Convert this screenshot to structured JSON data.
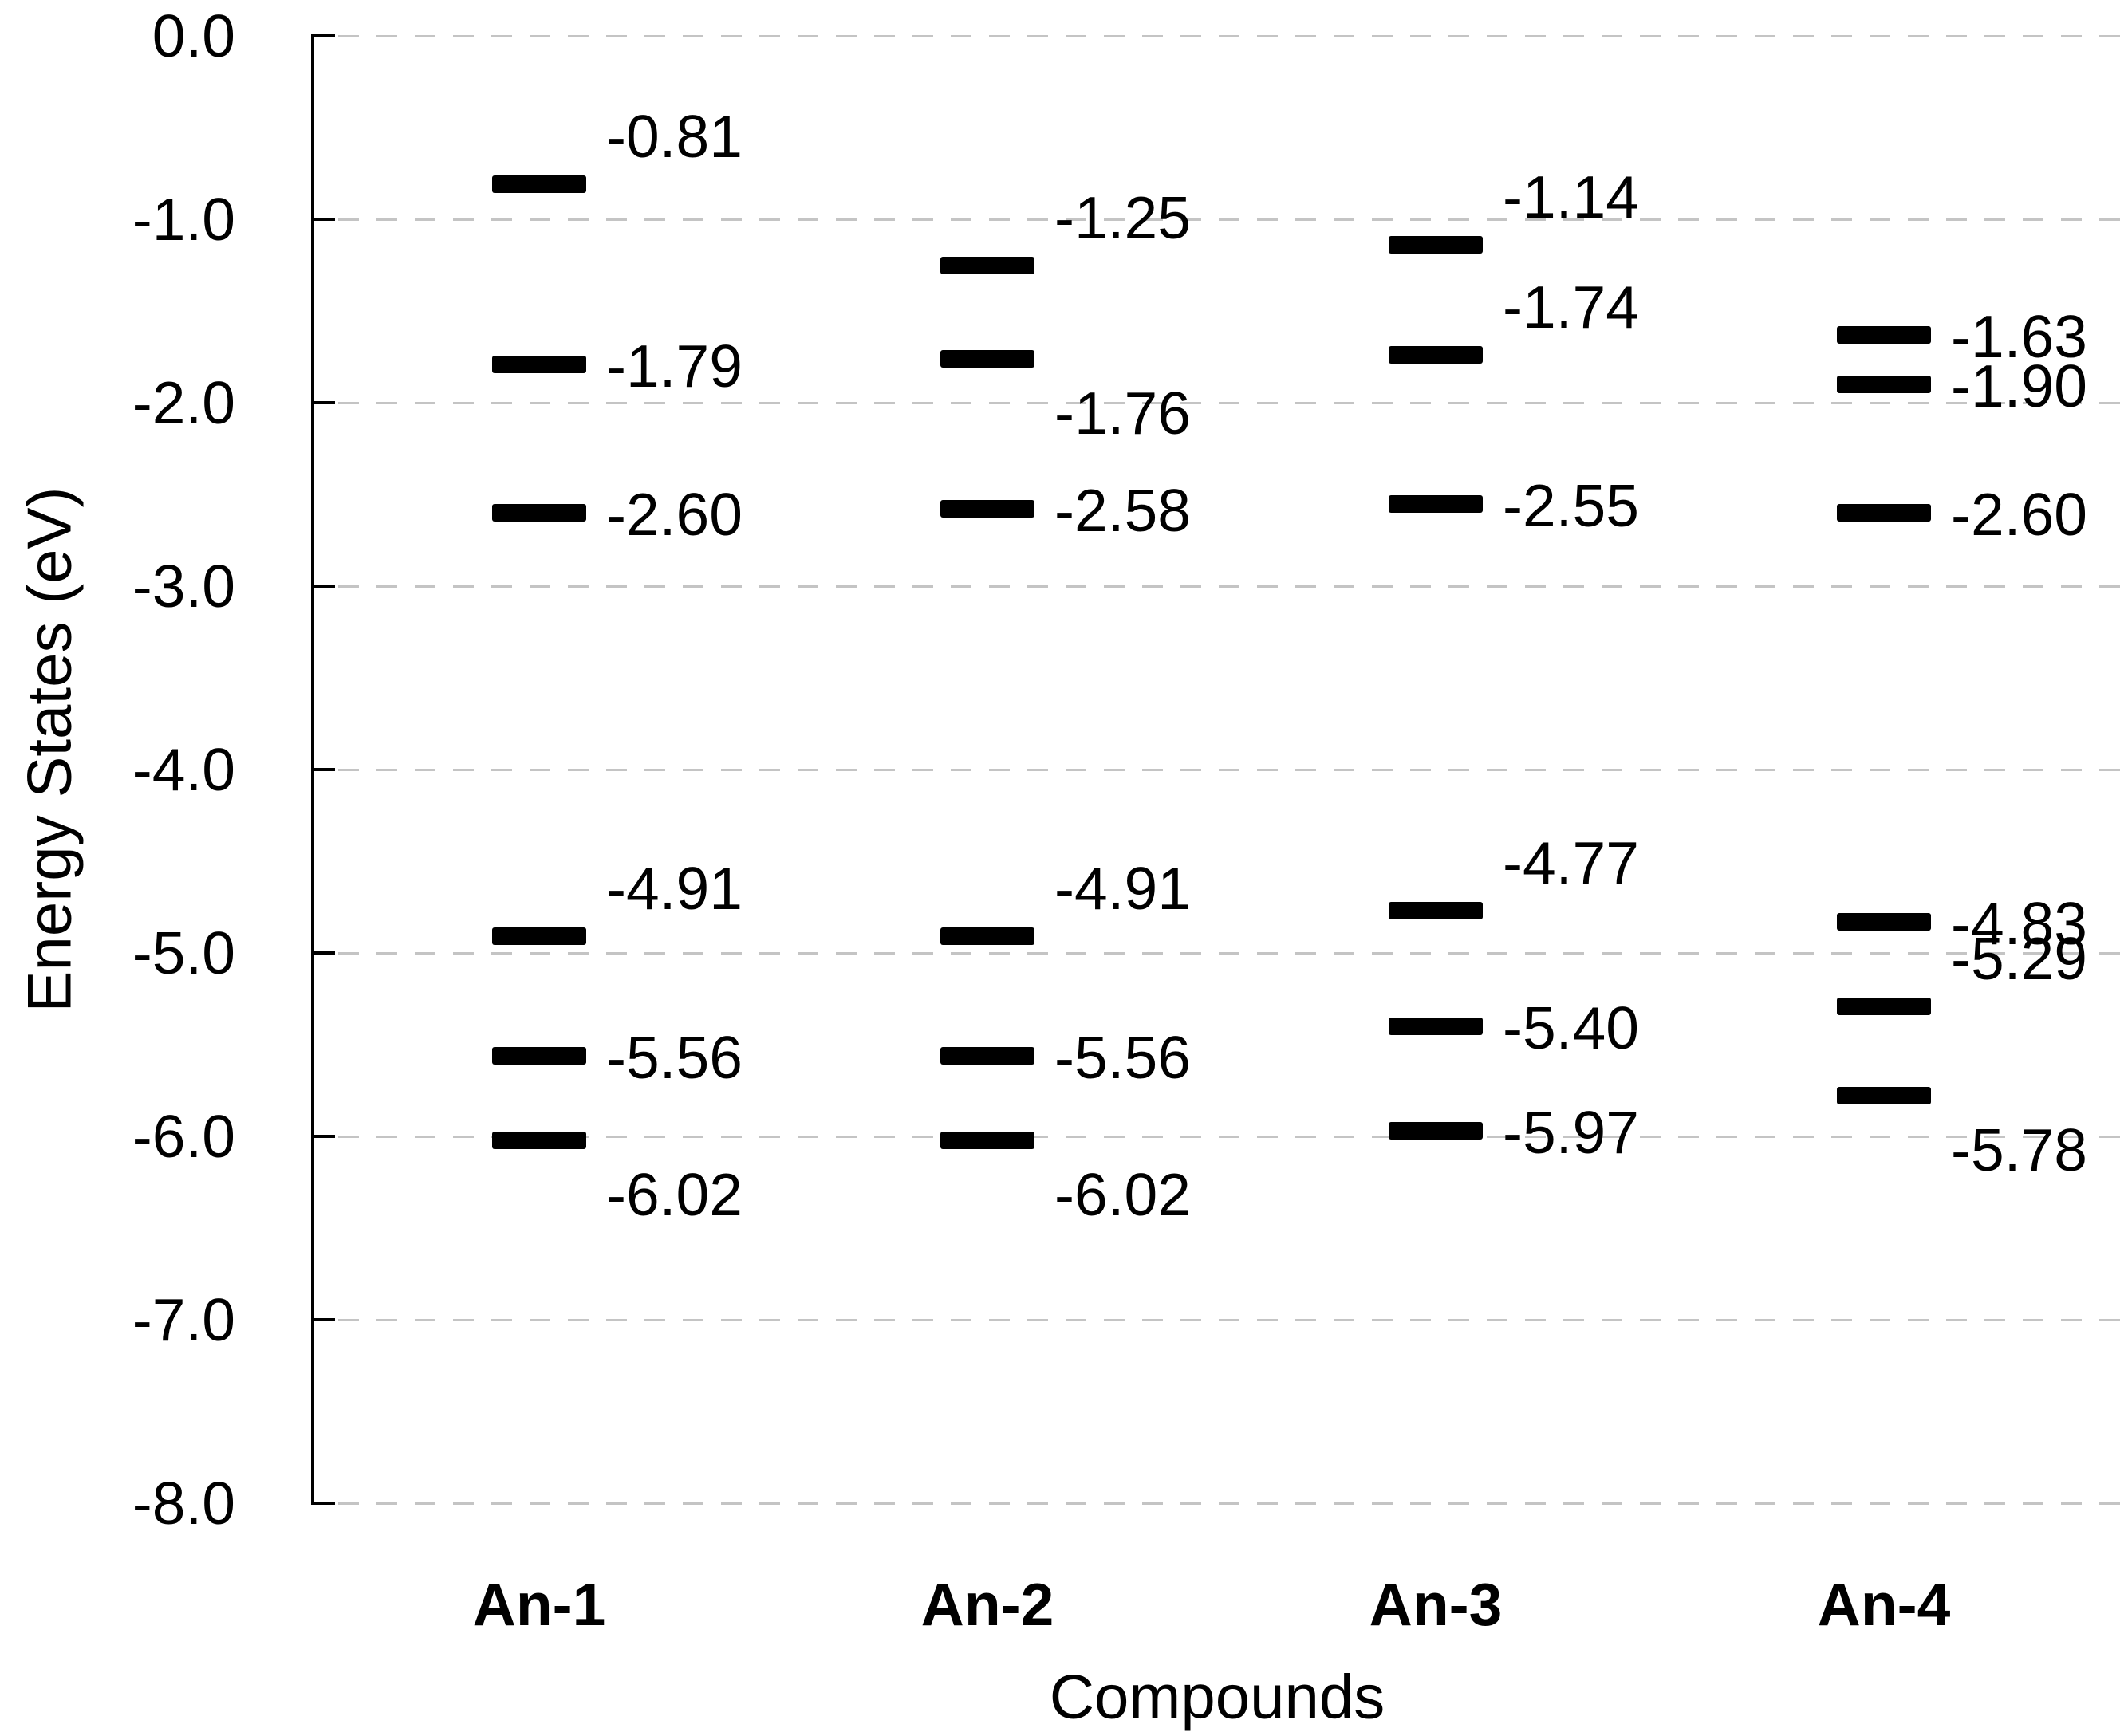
{
  "chart_data": {
    "type": "scatter",
    "subtype": "energy-level-diagram",
    "marker": "horizontal-level-bar",
    "title": "",
    "xlabel": "Compounds",
    "ylabel": "Energy States (eV)",
    "ylim": [
      -8.0,
      0.0
    ],
    "ytick_step": 1.0,
    "ytick_labels": [
      "0.0",
      "-1.0",
      "-2.0",
      "-3.0",
      "-4.0",
      "-5.0",
      "-6.0",
      "-7.0",
      "-8.0"
    ],
    "grid": "dashed-horizontal",
    "legend_position": "none",
    "categories": [
      "An-1",
      "An-2",
      "An-3",
      "An-4"
    ],
    "series": [
      {
        "name": "An-1",
        "levels": [
          {
            "value": -0.81,
            "label": "-0.81",
            "label_pos": "above"
          },
          {
            "value": -1.79,
            "label": "-1.79",
            "label_pos": "mid"
          },
          {
            "value": -2.6,
            "label": "-2.60",
            "label_pos": "mid"
          },
          {
            "value": -4.91,
            "label": "-4.91",
            "label_pos": "above"
          },
          {
            "value": -5.56,
            "label": "-5.56",
            "label_pos": "mid"
          },
          {
            "value": -6.02,
            "label": "-6.02",
            "label_pos": "below"
          }
        ]
      },
      {
        "name": "An-2",
        "levels": [
          {
            "value": -1.25,
            "label": "-1.25",
            "label_pos": "above"
          },
          {
            "value": -1.76,
            "label": "-1.76",
            "label_pos": "below"
          },
          {
            "value": -2.58,
            "label": "-2.58",
            "label_pos": "mid"
          },
          {
            "value": -4.91,
            "label": "-4.91",
            "label_pos": "above"
          },
          {
            "value": -5.56,
            "label": "-5.56",
            "label_pos": "mid"
          },
          {
            "value": -6.02,
            "label": "-6.02",
            "label_pos": "below"
          }
        ]
      },
      {
        "name": "An-3",
        "levels": [
          {
            "value": -1.14,
            "label": "-1.14",
            "label_pos": "above"
          },
          {
            "value": -1.74,
            "label": "-1.74",
            "label_pos": "above"
          },
          {
            "value": -2.55,
            "label": "-2.55",
            "label_pos": "mid"
          },
          {
            "value": -4.77,
            "label": "-4.77",
            "label_pos": "above"
          },
          {
            "value": -5.4,
            "label": "-5.40",
            "label_pos": "mid"
          },
          {
            "value": -5.97,
            "label": "-5.97",
            "label_pos": "mid"
          }
        ]
      },
      {
        "name": "An-4",
        "levels": [
          {
            "value": -1.63,
            "label": "-1.63",
            "label_pos": "mid"
          },
          {
            "value": -1.9,
            "label": "-1.90",
            "label_pos": "mid"
          },
          {
            "value": -2.6,
            "label": "-2.60",
            "label_pos": "mid"
          },
          {
            "value": -4.83,
            "label": "-4.83",
            "label_pos": "mid"
          },
          {
            "value": -5.29,
            "label": "-5.29",
            "label_pos": "above"
          },
          {
            "value": -5.78,
            "label": "-5.78",
            "label_pos": "below"
          }
        ]
      }
    ],
    "colors": {
      "level_bar": "#000000",
      "grid": "#c4c4c4",
      "axis": "#000000",
      "text": "#000000",
      "background": "#ffffff"
    }
  }
}
